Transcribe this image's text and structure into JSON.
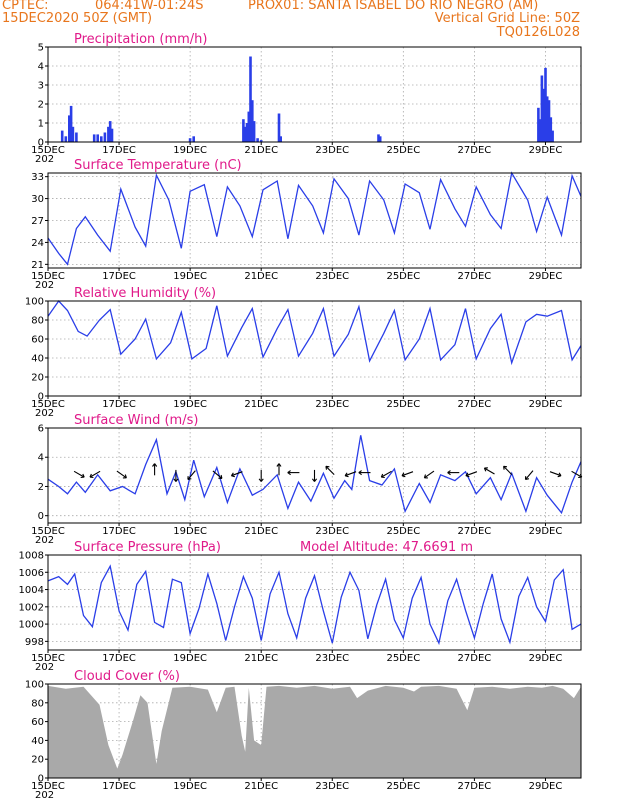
{
  "header": {
    "source": "CPTEC:",
    "coords": "064:41W-01:24S",
    "station": "PROX01: SANTA ISABEL DO RIO NEGRO (AM)",
    "run": "15DEC2020 50Z (GMT)",
    "grid_note": "Vertical Grid Line: 50Z",
    "code": "TQ0126L028"
  },
  "colors": {
    "header": "#e8761d",
    "title": "#e01a8a",
    "series": "#2a3ee8",
    "cloud": "#a9a9a9",
    "arrows": "#000000"
  },
  "x_axis": {
    "tick_labels": [
      "15DEC",
      "17DEC",
      "19DEC",
      "21DEC",
      "23DEC",
      "25DEC",
      "27DEC",
      "29DEC"
    ],
    "tick_days": [
      0,
      2,
      4,
      6,
      8,
      10,
      12,
      14
    ],
    "span_days": 15,
    "year_stub": "202"
  },
  "chart_data": [
    {
      "type": "bar",
      "id": "precip",
      "title": "Precipitation (mm/h)",
      "ylim": [
        0,
        5
      ],
      "yticks": [
        0,
        1,
        2,
        3,
        4,
        5
      ],
      "x_unit": "days since 15DEC",
      "x": [
        0.4,
        0.5,
        0.6,
        0.65,
        0.7,
        0.8,
        1.3,
        1.4,
        1.5,
        1.6,
        1.7,
        1.75,
        1.8,
        4.0,
        4.1,
        5.5,
        5.55,
        5.6,
        5.65,
        5.7,
        5.75,
        5.8,
        5.9,
        6.0,
        6.5,
        6.55,
        9.3,
        9.35,
        13.8,
        13.85,
        13.9,
        13.95,
        14.0,
        14.05,
        14.1,
        14.15,
        14.2
      ],
      "values": [
        0.6,
        0.3,
        1.4,
        1.9,
        0.8,
        0.5,
        0.4,
        0.4,
        0.3,
        0.5,
        0.8,
        1.1,
        0.7,
        0.2,
        0.3,
        1.2,
        0.8,
        1.0,
        1.6,
        4.5,
        2.2,
        1.1,
        0.2,
        0.1,
        1.5,
        0.3,
        0.4,
        0.3,
        1.8,
        1.2,
        3.5,
        2.8,
        3.9,
        2.4,
        2.2,
        1.3,
        0.6
      ]
    },
    {
      "type": "line",
      "id": "temp",
      "title": "Surface Temperature (nC)",
      "ylim": [
        20.5,
        33.5
      ],
      "yticks": [
        21,
        24,
        27,
        30,
        33
      ],
      "x_unit": "days since 15DEC",
      "x": [
        0.0,
        0.3,
        0.55,
        0.8,
        1.05,
        1.4,
        1.75,
        2.05,
        2.45,
        2.75,
        3.05,
        3.4,
        3.75,
        4.0,
        4.4,
        4.75,
        5.05,
        5.4,
        5.75,
        6.05,
        6.45,
        6.75,
        7.05,
        7.45,
        7.75,
        8.05,
        8.45,
        8.75,
        9.05,
        9.45,
        9.75,
        10.05,
        10.45,
        10.75,
        11.05,
        11.45,
        11.75,
        12.05,
        12.45,
        12.75,
        13.05,
        13.5,
        13.75,
        14.05,
        14.45,
        14.75,
        15.0
      ],
      "values": [
        24.6,
        22.5,
        21.0,
        25.9,
        27.5,
        25.0,
        22.8,
        31.3,
        26.1,
        23.5,
        33.2,
        29.8,
        23.2,
        31.0,
        31.9,
        24.8,
        31.6,
        29.0,
        24.8,
        31.2,
        32.4,
        24.5,
        31.8,
        29.0,
        25.3,
        32.7,
        30.0,
        25.0,
        32.4,
        29.8,
        25.3,
        32.0,
        30.8,
        25.8,
        32.6,
        28.6,
        26.2,
        31.6,
        27.8,
        25.9,
        33.6,
        29.8,
        25.5,
        30.2,
        25.0,
        33.1,
        30.3
      ]
    },
    {
      "type": "line",
      "id": "rh",
      "title": "Relative Humidity (%)",
      "ylim": [
        0,
        100
      ],
      "yticks": [
        0,
        20,
        40,
        60,
        80,
        100
      ],
      "x_unit": "days since 15DEC",
      "x": [
        0.0,
        0.3,
        0.55,
        0.85,
        1.1,
        1.45,
        1.75,
        2.05,
        2.45,
        2.75,
        3.05,
        3.45,
        3.75,
        4.05,
        4.45,
        4.75,
        5.05,
        5.45,
        5.75,
        6.05,
        6.45,
        6.75,
        7.05,
        7.45,
        7.75,
        8.05,
        8.45,
        8.75,
        9.05,
        9.45,
        9.75,
        10.05,
        10.45,
        10.75,
        11.05,
        11.45,
        11.75,
        12.05,
        12.45,
        12.75,
        13.05,
        13.45,
        13.75,
        14.05,
        14.45,
        14.75,
        15.0
      ],
      "values": [
        84.0,
        100.0,
        90.0,
        68.0,
        63.0,
        80.0,
        91.0,
        44.0,
        60.0,
        81.0,
        39.0,
        56.0,
        88.0,
        39.0,
        50.0,
        95.0,
        42.0,
        72.0,
        92.0,
        41.0,
        71.0,
        91.0,
        42.0,
        66.0,
        92.0,
        42.0,
        65.0,
        94.0,
        37.0,
        66.0,
        90.0,
        38.0,
        60.0,
        92.0,
        38.0,
        54.0,
        92.0,
        39.0,
        71.0,
        86.0,
        35.0,
        78.0,
        86.0,
        84.0,
        90.0,
        38.0,
        53.0
      ]
    },
    {
      "type": "line",
      "id": "wind",
      "title": "Surface Wind (m/s)",
      "ylim": [
        -0.5,
        6
      ],
      "yticks": [
        0,
        2,
        4,
        6
      ],
      "x_unit": "days since 15DEC",
      "x": [
        0.0,
        0.3,
        0.55,
        0.8,
        1.05,
        1.4,
        1.75,
        2.1,
        2.45,
        2.75,
        3.05,
        3.35,
        3.6,
        3.85,
        4.1,
        4.4,
        4.75,
        5.05,
        5.4,
        5.75,
        6.05,
        6.45,
        6.75,
        7.05,
        7.4,
        7.75,
        8.05,
        8.35,
        8.55,
        8.8,
        9.05,
        9.4,
        9.75,
        10.05,
        10.45,
        10.75,
        11.05,
        11.45,
        11.75,
        12.05,
        12.45,
        12.75,
        13.05,
        13.45,
        13.75,
        14.05,
        14.45,
        14.75,
        15.0
      ],
      "values": [
        2.5,
        2.0,
        1.5,
        2.3,
        1.6,
        2.8,
        1.7,
        2.0,
        1.5,
        3.5,
        5.2,
        1.5,
        3.0,
        1.1,
        3.8,
        1.3,
        3.3,
        0.9,
        3.2,
        1.4,
        1.8,
        2.8,
        0.5,
        2.3,
        1.0,
        2.9,
        1.2,
        2.4,
        1.8,
        5.5,
        2.4,
        2.1,
        3.2,
        0.3,
        2.2,
        0.9,
        2.8,
        2.4,
        3.0,
        1.5,
        2.6,
        1.1,
        2.9,
        0.3,
        2.6,
        1.4,
        0.2,
        2.3,
        3.7
      ],
      "arrows": [
        {
          "x": 0.8,
          "angle": -30
        },
        {
          "x": 1.4,
          "angle": 210
        },
        {
          "x": 2.0,
          "angle": -35
        },
        {
          "x": 3.0,
          "angle": 90
        },
        {
          "x": 3.6,
          "angle": 270
        },
        {
          "x": 4.1,
          "angle": 230
        },
        {
          "x": 4.7,
          "angle": -40
        },
        {
          "x": 5.4,
          "angle": 200
        },
        {
          "x": 6.0,
          "angle": 270
        },
        {
          "x": 6.5,
          "angle": 90
        },
        {
          "x": 7.0,
          "angle": 180
        },
        {
          "x": 7.5,
          "angle": 270
        },
        {
          "x": 8.0,
          "angle": 135
        },
        {
          "x": 8.6,
          "angle": 200
        },
        {
          "x": 9.0,
          "angle": 180
        },
        {
          "x": 9.6,
          "angle": 210
        },
        {
          "x": 10.2,
          "angle": 200
        },
        {
          "x": 10.8,
          "angle": 215
        },
        {
          "x": 11.5,
          "angle": 180
        },
        {
          "x": 12.0,
          "angle": 200
        },
        {
          "x": 12.5,
          "angle": 150
        },
        {
          "x": 13.0,
          "angle": 135
        },
        {
          "x": 13.6,
          "angle": 230
        },
        {
          "x": 14.2,
          "angle": -20
        },
        {
          "x": 14.8,
          "angle": 330
        }
      ]
    },
    {
      "type": "line",
      "id": "pres",
      "title": "Surface Pressure (hPa)",
      "annotation": "Model Altitude: 47.6691 m",
      "ylim": [
        997,
        1008
      ],
      "yticks": [
        998,
        1000,
        1002,
        1004,
        1006,
        1008
      ],
      "x_unit": "days since 15DEC",
      "x": [
        0.0,
        0.3,
        0.55,
        0.75,
        1.0,
        1.25,
        1.5,
        1.75,
        2.0,
        2.25,
        2.5,
        2.75,
        3.0,
        3.25,
        3.5,
        3.75,
        4.0,
        4.25,
        4.5,
        4.75,
        5.0,
        5.25,
        5.5,
        5.75,
        6.0,
        6.25,
        6.5,
        6.75,
        7.0,
        7.25,
        7.5,
        7.75,
        8.0,
        8.25,
        8.5,
        8.75,
        9.0,
        9.25,
        9.5,
        9.75,
        10.0,
        10.25,
        10.5,
        10.75,
        11.0,
        11.25,
        11.5,
        11.75,
        12.0,
        12.25,
        12.5,
        12.75,
        13.0,
        13.25,
        13.5,
        13.75,
        14.0,
        14.25,
        14.5,
        14.75,
        15.0
      ],
      "values": [
        1005.0,
        1005.5,
        1004.6,
        1005.8,
        1001.0,
        999.7,
        1004.8,
        1006.7,
        1001.5,
        999.3,
        1004.6,
        1006.1,
        1000.2,
        999.6,
        1005.2,
        1004.8,
        998.9,
        1001.8,
        1005.8,
        1002.4,
        998.1,
        1002.0,
        1005.5,
        1003.0,
        998.1,
        1003.5,
        1006.0,
        1001.2,
        998.4,
        1003.0,
        1005.6,
        1001.5,
        997.8,
        1003.1,
        1006.0,
        1003.9,
        998.3,
        1002.2,
        1005.2,
        1000.5,
        998.4,
        1003.0,
        1005.4,
        1000.0,
        997.8,
        1002.7,
        1005.2,
        1001.6,
        998.4,
        1002.4,
        1005.8,
        1000.6,
        997.9,
        1003.2,
        1005.4,
        1002.0,
        1000.3,
        1005.1,
        1006.3,
        999.4,
        1000.0
      ]
    },
    {
      "type": "area",
      "id": "cloud",
      "title": "Cloud Cover (%)",
      "ylim": [
        0,
        100
      ],
      "yticks": [
        0,
        20,
        40,
        60,
        80,
        100
      ],
      "x_unit": "days since 15DEC",
      "x": [
        0.0,
        0.5,
        1.0,
        1.45,
        1.7,
        1.95,
        2.1,
        2.4,
        2.6,
        2.8,
        3.05,
        3.2,
        3.5,
        4.0,
        4.5,
        4.75,
        5.0,
        5.25,
        5.45,
        5.55,
        5.65,
        5.8,
        6.0,
        6.15,
        6.5,
        7.0,
        7.5,
        8.0,
        8.5,
        8.7,
        9.0,
        9.5,
        10.0,
        10.3,
        10.5,
        11.0,
        11.5,
        11.8,
        12.0,
        12.5,
        13.0,
        13.5,
        13.9,
        14.2,
        14.5,
        14.8,
        15.0
      ],
      "values": [
        98.0,
        95.0,
        97.0,
        78.0,
        35.0,
        10.0,
        25.0,
        62.0,
        88.0,
        80.0,
        15.0,
        50.0,
        96.0,
        97.0,
        94.0,
        70.0,
        96.0,
        97.0,
        45.0,
        28.0,
        96.0,
        40.0,
        35.0,
        97.0,
        98.0,
        96.0,
        98.0,
        95.0,
        97.0,
        85.0,
        93.0,
        98.0,
        96.0,
        92.0,
        97.0,
        98.0,
        95.0,
        72.0,
        96.0,
        97.0,
        95.0,
        97.0,
        96.0,
        98.0,
        95.0,
        85.0,
        97.0
      ]
    }
  ]
}
